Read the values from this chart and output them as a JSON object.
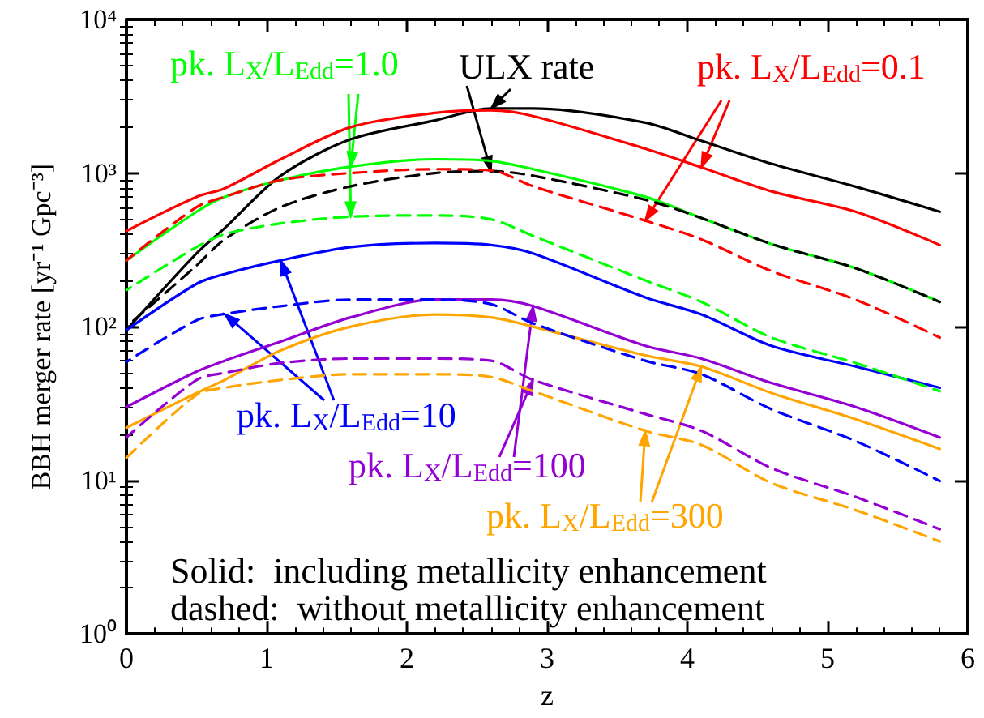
{
  "chart_data": {
    "type": "line",
    "xlabel": "z",
    "ylabel": "BBH merger rate [yr⁻¹ Gpc⁻³]",
    "x": [
      0,
      0.5,
      0.7,
      1.1,
      1.6,
      2.2,
      2.6,
      2.9,
      3.7,
      4.1,
      4.6,
      5.2,
      5.8
    ],
    "xlim": [
      0,
      6
    ],
    "xticks": [
      0,
      1,
      2,
      3,
      4,
      5,
      6
    ],
    "ylim": [
      1,
      10000
    ],
    "yticks": [
      {
        "value": 1,
        "label": "10⁰"
      },
      {
        "value": 10,
        "label": "10¹"
      },
      {
        "value": 100,
        "label": "10²"
      },
      {
        "value": 1000,
        "label": "10³"
      },
      {
        "value": 10000,
        "label": "10⁴"
      }
    ],
    "log": "y",
    "marker": "none",
    "series": [
      {
        "color": "#000000",
        "line_style": "solid",
        "values": [
          95,
          300,
          437,
          960,
          1660,
          2200,
          2630,
          2630,
          2130,
          1620,
          1150,
          815,
          560
        ]
      },
      {
        "color": "#000000",
        "line_style": "dashed",
        "values": [
          100,
          250,
          370,
          600,
          820,
          1000,
          1030,
          960,
          670,
          510,
          345,
          240,
          145
        ]
      },
      {
        "color": "#ff0000",
        "line_style": "solid",
        "values": [
          420,
          700,
          795,
          1230,
          1990,
          2460,
          2560,
          2350,
          1440,
          1090,
          760,
          560,
          340
        ]
      },
      {
        "color": "#ff0000",
        "line_style": "dashed",
        "values": [
          270,
          600,
          700,
          900,
          1000,
          1060,
          1040,
          820,
          490,
          370,
          230,
          150,
          85
        ]
      },
      {
        "color": "#00ff00",
        "line_style": "solid",
        "values": [
          270,
          560,
          700,
          900,
          1100,
          1230,
          1200,
          1060,
          700,
          510,
          345,
          240,
          145
        ]
      },
      {
        "color": "#00ff00",
        "line_style": "dashed",
        "values": [
          173,
          330,
          400,
          470,
          520,
          530,
          500,
          390,
          200,
          145,
          85,
          58,
          38
        ]
      },
      {
        "color": "#0000ff",
        "line_style": "solid",
        "values": [
          95,
          190,
          220,
          270,
          330,
          350,
          340,
          300,
          155,
          120,
          75,
          55,
          40
        ]
      },
      {
        "color": "#0000ff",
        "line_style": "dashed",
        "values": [
          59,
          110,
          121,
          136,
          150,
          150,
          140,
          105,
          60,
          49,
          29,
          18,
          9.9
        ]
      },
      {
        "color": "#9400d3",
        "line_style": "solid",
        "values": [
          30,
          51,
          60,
          80,
          115,
          150,
          150,
          136,
          75,
          62,
          43,
          30,
          19
        ]
      },
      {
        "color": "#9400d3",
        "line_style": "dashed",
        "values": [
          19,
          45,
          50,
          58,
          62,
          62,
          60,
          45,
          27,
          21,
          12,
          7.8,
          4.8
        ]
      },
      {
        "color": "#ffa500",
        "line_style": "solid",
        "values": [
          22,
          37,
          45,
          70,
          100,
          120,
          115,
          100,
          65,
          55,
          37,
          25,
          16
        ]
      },
      {
        "color": "#ffa500",
        "line_style": "dashed",
        "values": [
          14,
          36,
          40,
          45,
          49,
          49,
          47,
          38,
          21,
          17,
          9.6,
          6.4,
          4
        ]
      }
    ],
    "annotations": [
      {
        "text": "pk. L$_{X}$/L$_{Edd}$=1.0",
        "x": 1.6,
        "y": 1100
      },
      {
        "text": "ULX rate",
        "x": 2.6,
        "y": 2630
      },
      {
        "text": "pk. L$_{X}$/L$_{Edd}$=0.1",
        "x": 4.1,
        "y": 1090
      },
      {
        "text": "pk. L$_{X}$/L$_{Edd}$=10",
        "x": 1.1,
        "y": 270
      },
      {
        "text": "pk. L$_{X}$/L$_{Edd}$=100",
        "x": 2.9,
        "y": 136
      },
      {
        "text": "pk. L$_{X}$/L$_{Edd}$=300",
        "x": 4.1,
        "y": 55
      },
      "Solid:  including metallicity enhancement",
      "dashed:  without metallicity enhancement"
    ]
  }
}
